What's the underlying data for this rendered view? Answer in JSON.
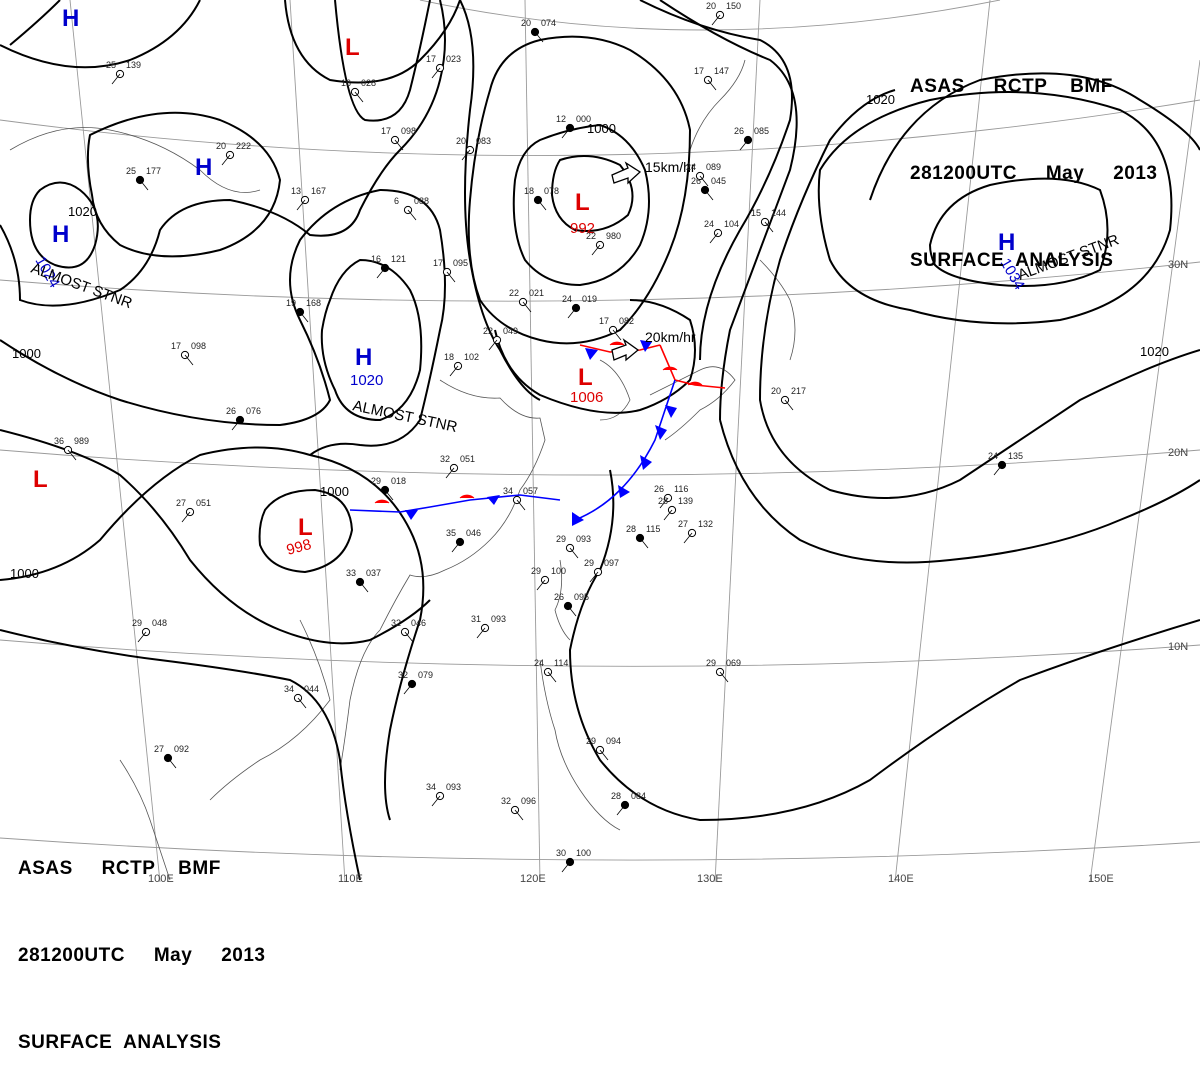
{
  "header": {
    "line1": "ASAS     RCTP    BMF",
    "line2": "281200UTC     May     2013",
    "line3": "SURFACE  ANALYSIS"
  },
  "colors": {
    "high": "#0000cc",
    "low": "#dd0000",
    "isobar": "#000000",
    "grid": "#9a9a9a",
    "cold_front": "#0000ff",
    "warm_front": "#ff0000"
  },
  "pressure_systems": [
    {
      "id": "H1",
      "type": "H",
      "label": "H",
      "value": ""
    },
    {
      "id": "H2",
      "type": "H",
      "label": "H",
      "value": ""
    },
    {
      "id": "H3",
      "type": "H",
      "label": "H",
      "value": "1024",
      "note": "ALMOST STNR"
    },
    {
      "id": "H4",
      "type": "H",
      "label": "H",
      "value": "1020",
      "note": "ALMOST STNR"
    },
    {
      "id": "H5",
      "type": "H",
      "label": "H",
      "value": "1034",
      "note": "ALMOST STNR"
    },
    {
      "id": "L1",
      "type": "L",
      "label": "L",
      "value": ""
    },
    {
      "id": "L2",
      "type": "L",
      "label": "L",
      "value": "992"
    },
    {
      "id": "L3",
      "type": "L",
      "label": "L",
      "value": "1006"
    },
    {
      "id": "L4",
      "type": "L",
      "label": "L",
      "value": ""
    },
    {
      "id": "L5",
      "type": "L",
      "label": "L",
      "value": "998"
    }
  ],
  "motion_labels": {
    "m1": "15km/hr",
    "m2": "20km/hr"
  },
  "isobar_labels": [
    "1000",
    "1020",
    "1020",
    "1000",
    "1000",
    "1020",
    "1000"
  ],
  "lon_labels": [
    "100E",
    "110E",
    "120E",
    "130E",
    "140E",
    "150E"
  ],
  "lat_labels": [
    "30N",
    "20N",
    "10N"
  ],
  "stations": [
    {
      "t": "20",
      "p": "074"
    },
    {
      "t": "17",
      "p": "023"
    },
    {
      "t": "16",
      "p": "028"
    },
    {
      "t": "12",
      "p": "000"
    },
    {
      "t": "17",
      "p": "098"
    },
    {
      "t": "20",
      "p": "222"
    },
    {
      "t": "25",
      "p": "177"
    },
    {
      "t": "13",
      "p": "167"
    },
    {
      "t": "6",
      "p": "088"
    },
    {
      "t": "16",
      "p": "121"
    },
    {
      "t": "17",
      "p": "095"
    },
    {
      "t": "20",
      "p": "083"
    },
    {
      "t": "18",
      "p": "078"
    },
    {
      "t": "22",
      "p": "980"
    },
    {
      "t": "22",
      "p": "021"
    },
    {
      "t": "24",
      "p": "019"
    },
    {
      "t": "17",
      "p": "082"
    },
    {
      "t": "22",
      "p": "049"
    },
    {
      "t": "19",
      "p": "168"
    },
    {
      "t": "18",
      "p": "102"
    },
    {
      "t": "17",
      "p": "098"
    },
    {
      "t": "26",
      "p": "076"
    },
    {
      "t": "36",
      "p": "989"
    },
    {
      "t": "27",
      "p": "051"
    },
    {
      "t": "29",
      "p": "018"
    },
    {
      "t": "32",
      "p": "051"
    },
    {
      "t": "34",
      "p": "057"
    },
    {
      "t": "35",
      "p": "046"
    },
    {
      "t": "29",
      "p": "093"
    },
    {
      "t": "29",
      "p": "100"
    },
    {
      "t": "33",
      "p": "037"
    },
    {
      "t": "31",
      "p": "093"
    },
    {
      "t": "32",
      "p": "046"
    },
    {
      "t": "32",
      "p": "079"
    },
    {
      "t": "34",
      "p": "044"
    },
    {
      "t": "29",
      "p": "048"
    },
    {
      "t": "27",
      "p": "092"
    },
    {
      "t": "34",
      "p": "093"
    },
    {
      "t": "32",
      "p": "096"
    },
    {
      "t": "30",
      "p": "100"
    },
    {
      "t": "24",
      "p": "114"
    },
    {
      "t": "26",
      "p": "116"
    },
    {
      "t": "28",
      "p": "115"
    },
    {
      "t": "27",
      "p": "132"
    },
    {
      "t": "29",
      "p": "069"
    },
    {
      "t": "24",
      "p": "135"
    },
    {
      "t": "20",
      "p": "217"
    },
    {
      "t": "25",
      "p": "139"
    },
    {
      "t": "26",
      "p": "045"
    },
    {
      "t": "24",
      "p": "104"
    },
    {
      "t": "15",
      "p": "144"
    },
    {
      "t": "26",
      "p": "085"
    },
    {
      "t": "24",
      "p": "089"
    },
    {
      "t": "29",
      "p": "097"
    },
    {
      "t": "26",
      "p": "095"
    },
    {
      "t": "28",
      "p": "139"
    },
    {
      "t": "29",
      "p": "094"
    },
    {
      "t": "28",
      "p": "084"
    },
    {
      "t": "17",
      "p": "147"
    },
    {
      "t": "20",
      "p": "150"
    }
  ]
}
